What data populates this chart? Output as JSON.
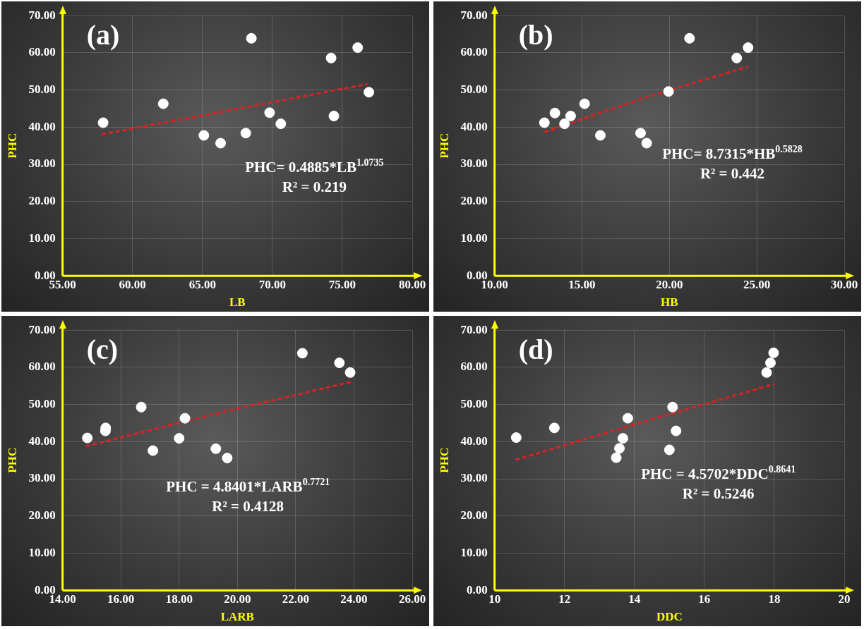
{
  "chart_data": [
    {
      "type": "scatter",
      "title": "(a)",
      "xlabel": "LB",
      "ylabel": "PHC",
      "annotations": [
        "PHC= 0.4885*LB$^{1.0735}$",
        "R² = 0.219"
      ],
      "xlim": [
        55,
        80
      ],
      "xticks": [
        {
          "value": 55,
          "label": "55.00"
        },
        {
          "value": 60,
          "label": "60.00"
        },
        {
          "value": 65,
          "label": "65.00"
        },
        {
          "value": 70,
          "label": "70.00"
        },
        {
          "value": 75,
          "label": "75.00"
        },
        {
          "value": 80,
          "label": "80.00"
        }
      ],
      "ylim": [
        0,
        70
      ],
      "yticks": [
        {
          "value": 0,
          "label": "0.00"
        },
        {
          "value": 10,
          "label": "10.00"
        },
        {
          "value": 20,
          "label": "20.00"
        },
        {
          "value": 30,
          "label": "30.00"
        },
        {
          "value": 40,
          "label": "40.00"
        },
        {
          "value": 50,
          "label": "50.00"
        },
        {
          "value": 60,
          "label": "60.00"
        },
        {
          "value": 70,
          "label": "70.00"
        }
      ],
      "grid": true,
      "series": [
        {
          "marker": "circle",
          "color": "#ffffff",
          "x": [
            57.9,
            62.2,
            65.1,
            66.3,
            68.1,
            68.5,
            69.8,
            70.6,
            74.2,
            74.4,
            76.1,
            76.9
          ],
          "values": [
            41.2,
            46.3,
            37.8,
            35.7,
            38.4,
            63.9,
            43.9,
            40.9,
            58.6,
            43.0,
            61.4,
            49.4
          ]
        },
        {
          "type": "line",
          "color": "#e02020",
          "line_style": "dashed",
          "x": [
            57.8,
            67.3,
            76.8
          ],
          "values": [
            38.1,
            44.8,
            51.6
          ]
        }
      ]
    },
    {
      "type": "scatter",
      "title": "(b)",
      "xlabel": "HB",
      "ylabel": "PHC",
      "annotations": [
        "PHC= 8.7315*HB$^{0.5828}$",
        "R² = 0.442"
      ],
      "xlim": [
        10,
        30
      ],
      "xticks": [
        {
          "value": 10,
          "label": "10.00"
        },
        {
          "value": 15,
          "label": "15.00"
        },
        {
          "value": 20,
          "label": "20.00"
        },
        {
          "value": 25,
          "label": "25.00"
        },
        {
          "value": 30,
          "label": "30.00"
        }
      ],
      "ylim": [
        0,
        70
      ],
      "yticks": [
        {
          "value": 0,
          "label": "0.00"
        },
        {
          "value": 10,
          "label": "10.00"
        },
        {
          "value": 20,
          "label": "20.00"
        },
        {
          "value": 30,
          "label": "30.00"
        },
        {
          "value": 40,
          "label": "40.00"
        },
        {
          "value": 50,
          "label": "50.00"
        },
        {
          "value": 60,
          "label": "60.00"
        },
        {
          "value": 70,
          "label": "70.00"
        }
      ],
      "grid": true,
      "series": [
        {
          "marker": "circle",
          "color": "#ffffff",
          "x": [
            12.85,
            13.45,
            14.0,
            14.35,
            15.15,
            16.05,
            18.35,
            18.7,
            19.95,
            21.15,
            23.85,
            24.5
          ],
          "values": [
            41.2,
            43.8,
            40.9,
            43.0,
            46.3,
            37.8,
            38.4,
            35.7,
            49.6,
            63.9,
            58.6,
            61.4
          ]
        },
        {
          "type": "line",
          "color": "#e02020",
          "line_style": "dashed",
          "x": [
            12.85,
            18.7,
            24.5
          ],
          "values": [
            38.7,
            48.1,
            56.3
          ]
        }
      ]
    },
    {
      "type": "scatter",
      "title": "(c)",
      "xlabel": "LARB",
      "ylabel": "PHC",
      "annotations": [
        "PHC = 4.8401*LARB$^{0.7721}$",
        "R² = 0.4128"
      ],
      "xlim": [
        14,
        26
      ],
      "xticks": [
        {
          "value": 14,
          "label": "14.00"
        },
        {
          "value": 16,
          "label": "16.00"
        },
        {
          "value": 18,
          "label": "18.00"
        },
        {
          "value": 20,
          "label": "20.00"
        },
        {
          "value": 22,
          "label": "22.00"
        },
        {
          "value": 24,
          "label": "24.00"
        },
        {
          "value": 26,
          "label": "26.00"
        }
      ],
      "ylim": [
        0,
        70
      ],
      "yticks": [
        {
          "value": 0,
          "label": "0.00"
        },
        {
          "value": 10,
          "label": "10.00"
        },
        {
          "value": 20,
          "label": "20.00"
        },
        {
          "value": 30,
          "label": "30.00"
        },
        {
          "value": 40,
          "label": "40.00"
        },
        {
          "value": 50,
          "label": "50.00"
        },
        {
          "value": 60,
          "label": "60.00"
        },
        {
          "value": 70,
          "label": "70.00"
        }
      ],
      "grid": true,
      "series": [
        {
          "marker": "circle",
          "color": "#ffffff",
          "x": [
            14.85,
            15.47,
            15.48,
            16.7,
            17.1,
            18.0,
            18.2,
            19.26,
            19.65,
            22.23,
            23.5,
            23.87
          ],
          "values": [
            41.0,
            42.9,
            43.7,
            49.3,
            37.6,
            40.9,
            46.3,
            38.1,
            35.6,
            63.8,
            61.2,
            58.6
          ]
        },
        {
          "type": "line",
          "color": "#e02020",
          "line_style": "dashed",
          "x": [
            14.8,
            19.35,
            23.9
          ],
          "values": [
            38.8,
            47.7,
            56.1
          ]
        }
      ]
    },
    {
      "type": "scatter",
      "title": "(d)",
      "xlabel": "DDC",
      "ylabel": "PHC",
      "annotations": [
        "PHC = 4.5702*DDC$^{0.8641}$",
        "R² = 0.5246"
      ],
      "xlim": [
        10,
        20
      ],
      "xticks": [
        10,
        12,
        14,
        16,
        18,
        20
      ],
      "ylim": [
        0,
        70
      ],
      "yticks": [
        {
          "value": 0,
          "label": "0.00"
        },
        {
          "value": 10,
          "label": "10.00"
        },
        {
          "value": 20,
          "label": "20.00"
        },
        {
          "value": 30,
          "label": "30.00"
        },
        {
          "value": 40,
          "label": "40.00"
        },
        {
          "value": 50,
          "label": "50.00"
        },
        {
          "value": 60,
          "label": "60.00"
        },
        {
          "value": 70,
          "label": "70.00"
        }
      ],
      "grid": true,
      "series": [
        {
          "marker": "circle",
          "color": "#ffffff",
          "x": [
            10.62,
            11.71,
            13.48,
            13.57,
            13.67,
            13.81,
            15.0,
            15.09,
            15.19,
            17.78,
            17.89,
            17.98
          ],
          "values": [
            41.1,
            43.7,
            35.7,
            38.2,
            40.9,
            46.3,
            37.8,
            49.3,
            42.9,
            58.6,
            61.2,
            63.9
          ]
        },
        {
          "type": "line",
          "color": "#e02020",
          "line_style": "dashed",
          "x": [
            10.6,
            14.3,
            18.0
          ],
          "values": [
            35.1,
            45.5,
            55.5
          ]
        }
      ]
    }
  ]
}
